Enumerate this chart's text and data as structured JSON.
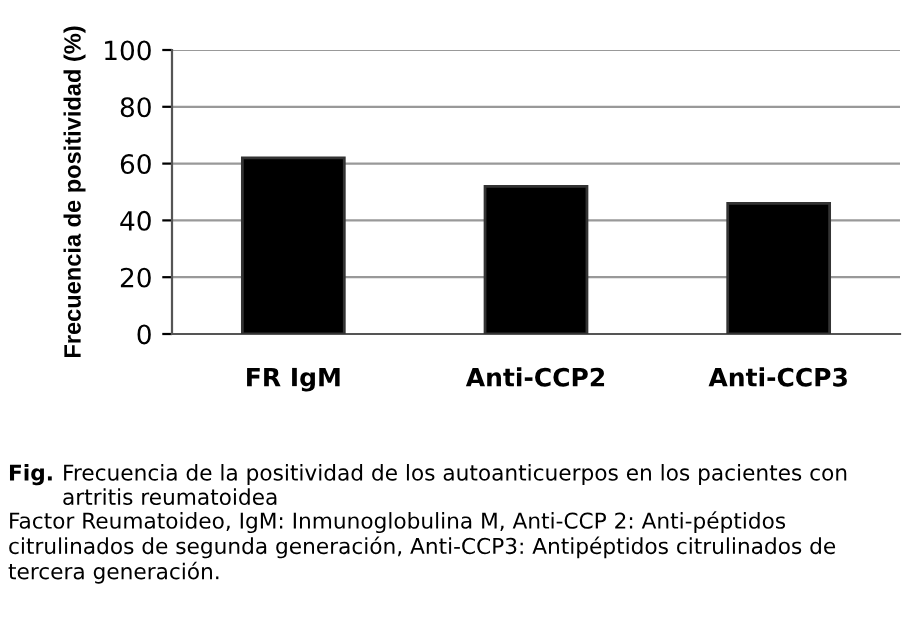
{
  "chart_data": {
    "type": "bar",
    "ylabel": "Frecuencia de positividad (%)",
    "categories": [
      "FR IgM",
      "Anti-CCP2",
      "Anti-CCP3"
    ],
    "values": [
      62,
      52,
      46
    ],
    "color": "#000000",
    "ylim": [
      0,
      100
    ],
    "yticks": [
      0,
      20,
      40,
      60,
      80,
      100
    ],
    "grid": "y",
    "annotations": [
      "Fig.",
      "Frecuencia de la positividad de los autoanticuerpos en los pacientes con artritis reumatoidea",
      "Factor Reumatoideo, IgM: Inmunoglobulina M, Anti-CCP 2: Anti-péptidos citrulinados de segunda generación, Anti-CCP3: Antipéptidos citrulinados de tercera generación."
    ]
  }
}
